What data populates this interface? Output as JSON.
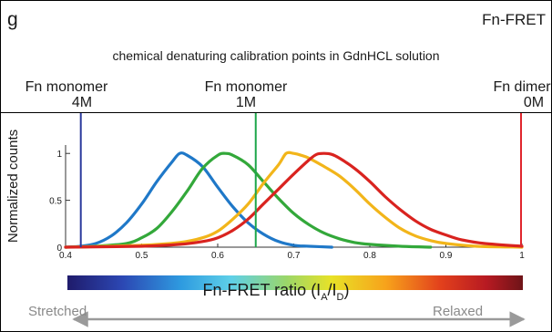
{
  "panel_letter": "g",
  "panel_title": "Fn-FRET",
  "subtitle": "chemical denaturing calibration points in GdnHCL solution",
  "markers": [
    {
      "name": "Fn monomer",
      "concentration": "4M",
      "x": 0.42,
      "color": "#2b3a9c"
    },
    {
      "name": "Fn monomer",
      "concentration": "1M",
      "x": 0.65,
      "color": "#1ea64a"
    },
    {
      "name": "Fn dimer",
      "concentration": "0M",
      "x": 1.0,
      "color": "#e0262d"
    }
  ],
  "x_axis": {
    "label_main": "Fn-FRET ratio (I",
    "label_sub_a": "A",
    "label_mid": "/I",
    "label_sub_d": "D",
    "label_end": ")",
    "left_label": "Stretched",
    "right_label": "Relaxed"
  },
  "chart_data": {
    "type": "line",
    "xlabel": "Fn-FRET ratio (IA/ID)",
    "ylabel": "Normalized counts",
    "xlim": [
      0.4,
      1.0
    ],
    "ylim": [
      0,
      1.08
    ],
    "xticks": [
      "0.4",
      "0.5",
      "0.6",
      "0.7",
      "0.8",
      "0.9",
      "1"
    ],
    "yticks": [
      "0",
      "0.5",
      "1"
    ],
    "series": [
      {
        "color": "#1f78c8",
        "points": [
          [
            0.4,
            0
          ],
          [
            0.42,
            0.01
          ],
          [
            0.44,
            0.04
          ],
          [
            0.46,
            0.12
          ],
          [
            0.48,
            0.26
          ],
          [
            0.5,
            0.46
          ],
          [
            0.52,
            0.7
          ],
          [
            0.54,
            0.91
          ],
          [
            0.55,
            1.0
          ],
          [
            0.56,
            0.98
          ],
          [
            0.58,
            0.86
          ],
          [
            0.6,
            0.64
          ],
          [
            0.62,
            0.43
          ],
          [
            0.64,
            0.26
          ],
          [
            0.66,
            0.14
          ],
          [
            0.68,
            0.06
          ],
          [
            0.7,
            0.02
          ],
          [
            0.72,
            0.01
          ],
          [
            0.75,
            0
          ]
        ]
      },
      {
        "color": "#33a83a",
        "points": [
          [
            0.4,
            0
          ],
          [
            0.44,
            0.01
          ],
          [
            0.48,
            0.04
          ],
          [
            0.5,
            0.1
          ],
          [
            0.52,
            0.2
          ],
          [
            0.54,
            0.38
          ],
          [
            0.56,
            0.6
          ],
          [
            0.58,
            0.84
          ],
          [
            0.6,
            0.98
          ],
          [
            0.61,
            1.0
          ],
          [
            0.62,
            0.98
          ],
          [
            0.64,
            0.88
          ],
          [
            0.66,
            0.7
          ],
          [
            0.68,
            0.52
          ],
          [
            0.7,
            0.36
          ],
          [
            0.72,
            0.24
          ],
          [
            0.74,
            0.15
          ],
          [
            0.76,
            0.09
          ],
          [
            0.78,
            0.05
          ],
          [
            0.8,
            0.03
          ],
          [
            0.84,
            0.01
          ],
          [
            0.88,
            0
          ]
        ]
      },
      {
        "color": "#f2b51a",
        "points": [
          [
            0.4,
            0
          ],
          [
            0.5,
            0.02
          ],
          [
            0.55,
            0.05
          ],
          [
            0.58,
            0.1
          ],
          [
            0.6,
            0.17
          ],
          [
            0.62,
            0.3
          ],
          [
            0.64,
            0.46
          ],
          [
            0.66,
            0.68
          ],
          [
            0.68,
            0.88
          ],
          [
            0.69,
            1.0
          ],
          [
            0.7,
            1.0
          ],
          [
            0.71,
            0.98
          ],
          [
            0.72,
            0.95
          ],
          [
            0.74,
            0.86
          ],
          [
            0.76,
            0.76
          ],
          [
            0.78,
            0.62
          ],
          [
            0.8,
            0.46
          ],
          [
            0.82,
            0.32
          ],
          [
            0.84,
            0.2
          ],
          [
            0.86,
            0.12
          ],
          [
            0.88,
            0.07
          ],
          [
            0.9,
            0.04
          ],
          [
            0.94,
            0.01
          ],
          [
            1.0,
            0
          ]
        ]
      },
      {
        "color": "#d9231f",
        "points": [
          [
            0.4,
            0
          ],
          [
            0.5,
            0.01
          ],
          [
            0.55,
            0.03
          ],
          [
            0.58,
            0.06
          ],
          [
            0.6,
            0.1
          ],
          [
            0.62,
            0.18
          ],
          [
            0.64,
            0.3
          ],
          [
            0.66,
            0.46
          ],
          [
            0.68,
            0.62
          ],
          [
            0.7,
            0.78
          ],
          [
            0.72,
            0.93
          ],
          [
            0.73,
            0.99
          ],
          [
            0.74,
            1.0
          ],
          [
            0.75,
            0.99
          ],
          [
            0.76,
            0.95
          ],
          [
            0.78,
            0.84
          ],
          [
            0.8,
            0.7
          ],
          [
            0.82,
            0.54
          ],
          [
            0.84,
            0.4
          ],
          [
            0.86,
            0.28
          ],
          [
            0.88,
            0.19
          ],
          [
            0.9,
            0.13
          ],
          [
            0.92,
            0.08
          ],
          [
            0.95,
            0.04
          ],
          [
            1.0,
            0.01
          ]
        ]
      }
    ]
  }
}
